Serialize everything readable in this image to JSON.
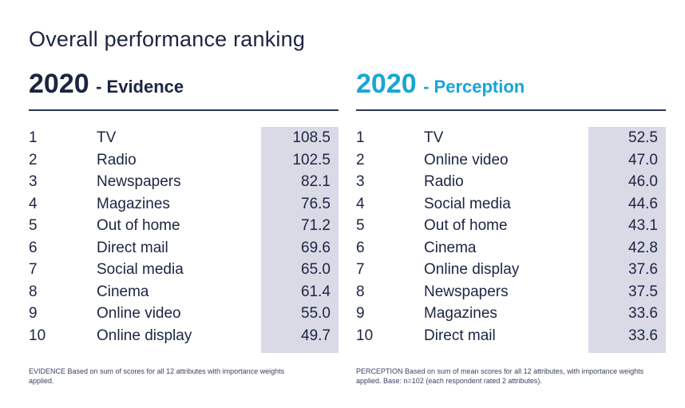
{
  "title": "Overall performance ranking",
  "chart_data": [
    {
      "type": "table",
      "year": "2020",
      "subtitle": "- Evidence",
      "columns": [
        "rank",
        "medium",
        "score"
      ],
      "rows": [
        {
          "rank": "1",
          "label": "TV",
          "value": "108.5"
        },
        {
          "rank": "2",
          "label": "Radio",
          "value": "102.5"
        },
        {
          "rank": "3",
          "label": "Newspapers",
          "value": "82.1"
        },
        {
          "rank": "4",
          "label": "Magazines",
          "value": "76.5"
        },
        {
          "rank": "5",
          "label": "Out of home",
          "value": "71.2"
        },
        {
          "rank": "6",
          "label": "Direct mail",
          "value": "69.6"
        },
        {
          "rank": "7",
          "label": "Social media",
          "value": "65.0"
        },
        {
          "rank": "8",
          "label": "Cinema",
          "value": "61.4"
        },
        {
          "rank": "9",
          "label": "Online video",
          "value": "55.0"
        },
        {
          "rank": "10",
          "label": "Online display",
          "value": "49.7"
        }
      ],
      "footnote": "EVIDENCE Based on sum of scores for all 12 attributes with importance weights applied.",
      "color": "#1c2542"
    },
    {
      "type": "table",
      "year": "2020",
      "subtitle": "- Perception",
      "columns": [
        "rank",
        "medium",
        "score"
      ],
      "rows": [
        {
          "rank": "1",
          "label": "TV",
          "value": "52.5"
        },
        {
          "rank": "2",
          "label": "Online video",
          "value": "47.0"
        },
        {
          "rank": "3",
          "label": "Radio",
          "value": "46.0"
        },
        {
          "rank": "4",
          "label": "Social media",
          "value": "44.6"
        },
        {
          "rank": "5",
          "label": "Out of home",
          "value": "43.1"
        },
        {
          "rank": "6",
          "label": "Cinema",
          "value": "42.8"
        },
        {
          "rank": "7",
          "label": "Online display",
          "value": "37.6"
        },
        {
          "rank": "8",
          "label": "Newspapers",
          "value": "37.5"
        },
        {
          "rank": "9",
          "label": "Magazines",
          "value": "33.6"
        },
        {
          "rank": "10",
          "label": "Direct mail",
          "value": "33.6"
        }
      ],
      "footnote": "PERCEPTION Based on sum of mean scores for all 12 attributes, with importance weights applied. Base: n=102 (each respondent rated 2 attributes).",
      "color": "#18a6d6"
    }
  ]
}
